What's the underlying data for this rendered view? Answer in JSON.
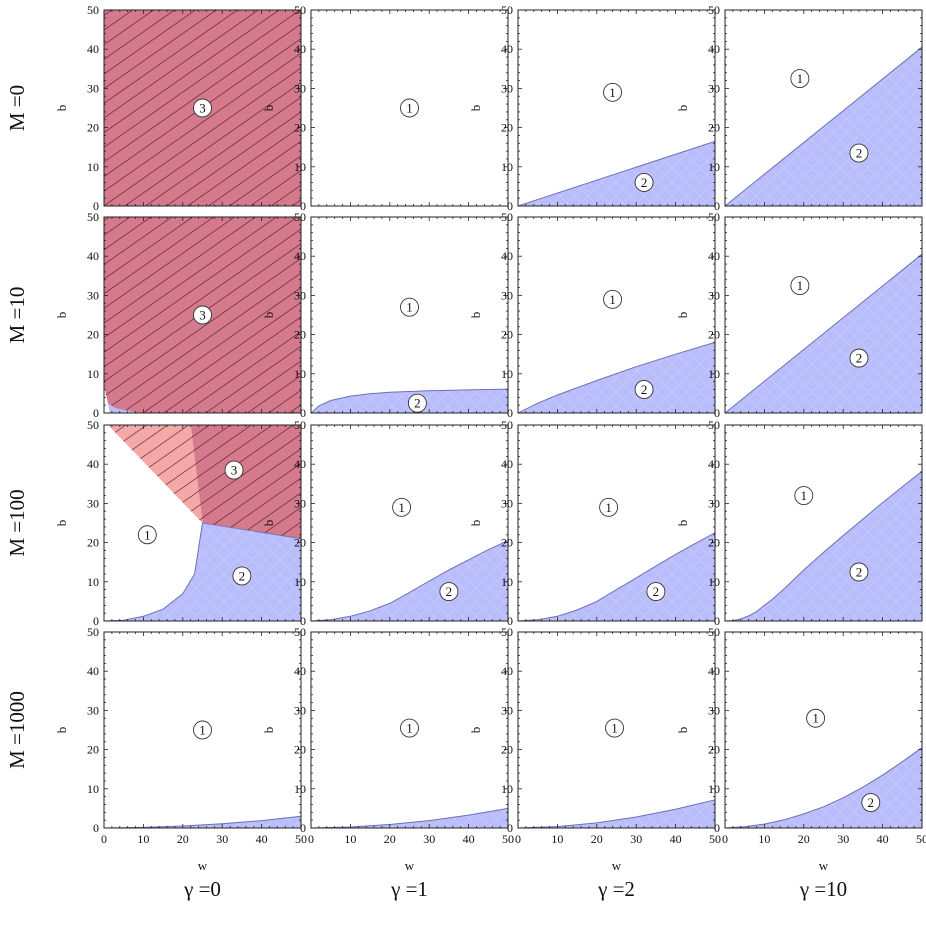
{
  "colors": {
    "region1": "#ffffff",
    "region2": "#b9bdfb",
    "region3": "#d57a8c",
    "region3_light": "#f4a8a8",
    "hatch": "#3a0d18",
    "boundary": "#6b6fb8",
    "frame": "#222222"
  },
  "chart_data": {
    "type": "area",
    "layout": "4x4 grid of region plots",
    "row_labels": [
      "M =0",
      "M =10",
      "M =100",
      "M =1000"
    ],
    "col_labels": [
      "γ =0",
      "γ =1",
      "γ =2",
      "γ =10"
    ],
    "xlabel": "w",
    "ylabel": "b",
    "xlim": [
      0,
      50
    ],
    "ylim": [
      0,
      50
    ],
    "xticks": [
      "0",
      "10",
      "20",
      "30",
      "40",
      "50"
    ],
    "yticks": [
      "0",
      "10",
      "20",
      "30",
      "40",
      "50"
    ],
    "grid": false,
    "region_fill": {
      "1": "white",
      "2": "blue",
      "3": "red, hatched"
    },
    "panels": [
      [
        {
          "M": 0,
          "gamma": 0,
          "type": "all3",
          "markers": [
            {
              "label": "3",
              "w": 25,
              "b": 25
            }
          ]
        },
        {
          "M": 0,
          "gamma": 1,
          "type": "none",
          "markers": [
            {
              "label": "1",
              "w": 25,
              "b": 25
            }
          ]
        },
        {
          "M": 0,
          "gamma": 2,
          "type": "curve",
          "boundary": {
            "w": [
              0,
              50
            ],
            "b": [
              0,
              16.5
            ]
          },
          "markers": [
            {
              "label": "1",
              "w": 24,
              "b": 29
            },
            {
              "label": "2",
              "w": 32,
              "b": 6
            }
          ]
        },
        {
          "M": 0,
          "gamma": 10,
          "type": "curve",
          "boundary": {
            "w": [
              0,
              50
            ],
            "b": [
              0,
              40.5
            ]
          },
          "markers": [
            {
              "label": "1",
              "w": 19,
              "b": 32.5
            },
            {
              "label": "2",
              "w": 34,
              "b": 13.5
            }
          ]
        }
      ],
      [
        {
          "M": 10,
          "gamma": 0,
          "type": "m10g0",
          "markers": [
            {
              "label": "3",
              "w": 25,
              "b": 25
            }
          ]
        },
        {
          "M": 10,
          "gamma": 1,
          "type": "curve",
          "boundary": {
            "w": [
              0,
              2,
              5,
              10,
              15,
              20,
              30,
              40,
              50
            ],
            "b": [
              0,
              1.8,
              3.2,
              4.3,
              4.9,
              5.3,
              5.7,
              5.9,
              6.1
            ]
          },
          "markers": [
            {
              "label": "1",
              "w": 25,
              "b": 27
            },
            {
              "label": "2",
              "w": 27,
              "b": 2.5
            }
          ]
        },
        {
          "M": 10,
          "gamma": 2,
          "type": "curve",
          "boundary": {
            "w": [
              0,
              5,
              10,
              20,
              30,
              40,
              50
            ],
            "b": [
              0,
              2.5,
              4.6,
              8.3,
              11.8,
              15,
              18
            ]
          },
          "markers": [
            {
              "label": "1",
              "w": 24,
              "b": 29
            },
            {
              "label": "2",
              "w": 32,
              "b": 6
            }
          ]
        },
        {
          "M": 10,
          "gamma": 10,
          "type": "curve",
          "boundary": {
            "w": [
              0,
              50
            ],
            "b": [
              0,
              40.5
            ]
          },
          "markers": [
            {
              "label": "1",
              "w": 19,
              "b": 32.5
            },
            {
              "label": "2",
              "w": 34,
              "b": 14
            }
          ]
        }
      ],
      [
        {
          "M": 100,
          "gamma": 0,
          "type": "m100g0",
          "boundary_1_2": {
            "w": [
              0,
              5,
              10,
              15,
              20,
              23,
              25
            ],
            "b": [
              0,
              0.2,
              1.2,
              3,
              7,
              12,
              25
            ]
          },
          "boundary_2_3": {
            "w": [
              25,
              50
            ],
            "b": [
              25,
              21
            ]
          },
          "boundary_1_3": {
            "w": [
              1,
              25
            ],
            "b": [
              50,
              25
            ]
          },
          "light_3": {
            "w": [
              1,
              22,
              25
            ],
            "b": [
              50,
              50,
              25
            ]
          },
          "markers": [
            {
              "label": "3",
              "w": 33,
              "b": 38.5
            },
            {
              "label": "1",
              "w": 11,
              "b": 22
            },
            {
              "label": "2",
              "w": 35,
              "b": 11.5
            }
          ]
        },
        {
          "M": 100,
          "gamma": 1,
          "type": "curve",
          "boundary": {
            "w": [
              0,
              5,
              10,
              15,
              20,
              25,
              30,
              35,
              40,
              45,
              50
            ],
            "b": [
              0,
              0.3,
              1.2,
              2.6,
              4.5,
              7.3,
              10.2,
              13,
              15.6,
              18.2,
              20.5
            ]
          },
          "markers": [
            {
              "label": "1",
              "w": 23,
              "b": 29
            },
            {
              "label": "2",
              "w": 35,
              "b": 7.5
            }
          ]
        },
        {
          "M": 100,
          "gamma": 2,
          "type": "curve",
          "boundary": {
            "w": [
              0,
              5,
              10,
              15,
              20,
              25,
              30,
              35,
              40,
              45,
              50
            ],
            "b": [
              0,
              0.3,
              1.2,
              2.8,
              5,
              8,
              11,
              14,
              17,
              19.8,
              22.5
            ]
          },
          "markers": [
            {
              "label": "1",
              "w": 23,
              "b": 29
            },
            {
              "label": "2",
              "w": 35,
              "b": 7.5
            }
          ]
        },
        {
          "M": 100,
          "gamma": 10,
          "type": "curve",
          "boundary": {
            "w": [
              0,
              2,
              4,
              6,
              8,
              10,
              12,
              15,
              20,
              25,
              30,
              35,
              40,
              45,
              50
            ],
            "b": [
              0,
              0.1,
              0.5,
              1.3,
              2.4,
              4,
              5.5,
              8.2,
              13,
              17.5,
              21.8,
              26,
              30.2,
              34.2,
              38.2
            ]
          },
          "markers": [
            {
              "label": "1",
              "w": 20,
              "b": 32
            },
            {
              "label": "2",
              "w": 34,
              "b": 12.5
            }
          ]
        }
      ],
      [
        {
          "M": 1000,
          "gamma": 0,
          "type": "curve",
          "boundary": {
            "w": [
              0,
              10,
              20,
              30,
              40,
              50
            ],
            "b": [
              0,
              0.15,
              0.5,
              1.1,
              1.9,
              3
            ]
          },
          "markers": [
            {
              "label": "1",
              "w": 25,
              "b": 25
            }
          ]
        },
        {
          "M": 1000,
          "gamma": 1,
          "type": "curve",
          "boundary": {
            "w": [
              0,
              10,
              20,
              30,
              40,
              50
            ],
            "b": [
              0,
              0.25,
              0.9,
              1.9,
              3.3,
              5
            ]
          },
          "markers": [
            {
              "label": "1",
              "w": 25,
              "b": 25.5
            }
          ]
        },
        {
          "M": 1000,
          "gamma": 2,
          "type": "curve",
          "boundary": {
            "w": [
              0,
              10,
              20,
              30,
              40,
              50
            ],
            "b": [
              0,
              0.35,
              1.3,
              2.8,
              4.8,
              7.2
            ]
          },
          "markers": [
            {
              "label": "1",
              "w": 24.5,
              "b": 25.5
            }
          ]
        },
        {
          "M": 1000,
          "gamma": 10,
          "type": "curve",
          "boundary": {
            "w": [
              0,
              5,
              10,
              15,
              20,
              25,
              30,
              35,
              40,
              45,
              50
            ],
            "b": [
              0,
              0.3,
              1,
              2.1,
              3.6,
              5.4,
              7.7,
              10.4,
              13.5,
              16.9,
              20.5
            ]
          },
          "markers": [
            {
              "label": "1",
              "w": 23,
              "b": 28
            },
            {
              "label": "2",
              "w": 37,
              "b": 6.5
            }
          ]
        }
      ]
    ]
  }
}
